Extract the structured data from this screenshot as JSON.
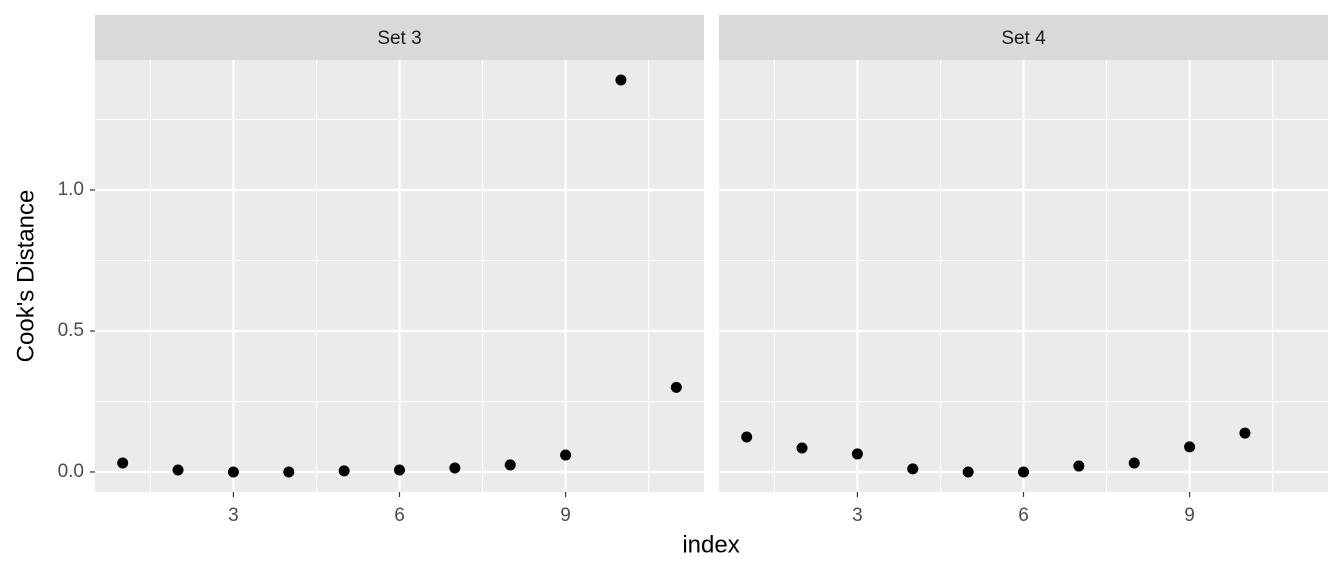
{
  "chart_data": {
    "type": "scatter",
    "x_label": "index",
    "y_label": "Cook's Distance",
    "color": "#000000",
    "grid": true,
    "xlim": [
      0.5,
      11.5
    ],
    "xticks": [
      3,
      6,
      9
    ],
    "xminor": [
      1.5,
      4.5,
      7.5,
      10.5
    ],
    "ylim": [
      -0.071,
      1.461
    ],
    "yticks": [
      {
        "value": 0,
        "label": "0.0"
      },
      0.5,
      {
        "value": 1,
        "label": "1.0"
      }
    ],
    "yminor": [
      0.25,
      0.75,
      1.25
    ],
    "facets": [
      {
        "title": "Set 3",
        "x": [
          1,
          2,
          3,
          4,
          5,
          6,
          7,
          8,
          9,
          10,
          11
        ],
        "values": [
          0.032,
          0.007,
          0.0,
          0.0,
          0.004,
          0.007,
          0.014,
          0.025,
          0.06,
          1.39,
          0.3
        ]
      },
      {
        "title": "Set 4",
        "x": [
          1,
          2,
          3,
          4,
          5,
          6,
          7,
          8,
          9,
          10
        ],
        "values": [
          0.124,
          0.085,
          0.064,
          0.011,
          0.0,
          0.0,
          0.021,
          0.032,
          0.089,
          0.138
        ]
      }
    ]
  }
}
